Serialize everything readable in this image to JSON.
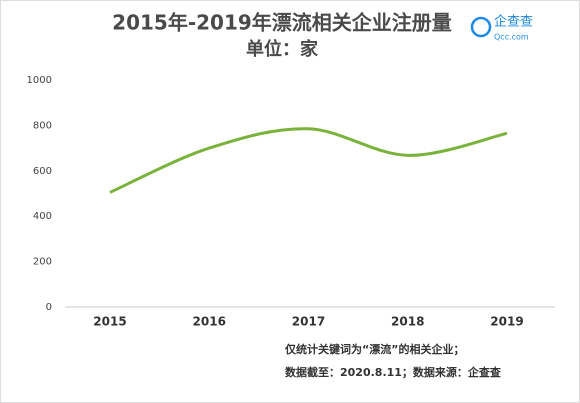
{
  "chart_data": {
    "type": "line",
    "title": "2015年-2019年漂流相关企业注册量",
    "subtitle": "单位：家",
    "categories": [
      "2015",
      "2016",
      "2017",
      "2018",
      "2019"
    ],
    "values": [
      505,
      700,
      785,
      668,
      765
    ],
    "color": "#7ab33c",
    "smooth": true,
    "ylim": [
      0,
      1000
    ],
    "yticks": [
      0,
      200,
      400,
      600,
      800,
      1000
    ],
    "notes": [
      "仅统计关键词为“漂流”的相关企业；",
      "数据截至：2020.8.11；数据来源：企查查"
    ]
  },
  "logo": {
    "name": "企查查",
    "domain": "Qcc.com"
  }
}
